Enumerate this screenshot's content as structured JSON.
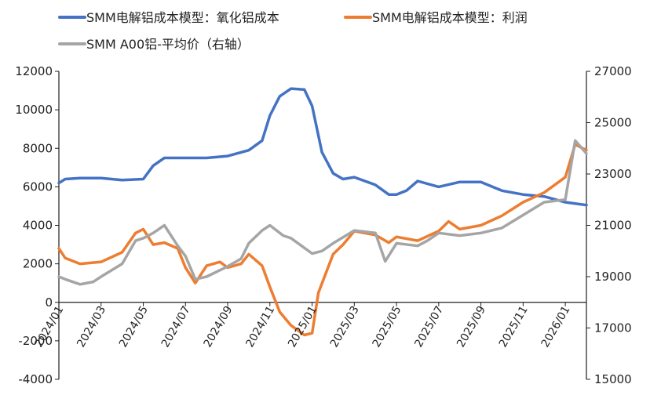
{
  "chart_data": {
    "type": "line",
    "title": "",
    "legend_position": "top",
    "grid": false,
    "x_ticks": [
      "2024/01",
      "2024/03",
      "2024/05",
      "2024/07",
      "2024/09",
      "2024/11",
      "2025/01",
      "2025/03",
      "2025/05",
      "2025/07",
      "2025/09",
      "2025/11",
      "2026/01"
    ],
    "xlim": [
      "2024/01",
      "2026/02"
    ],
    "y_left": {
      "ylim": [
        -4000,
        12000
      ],
      "ticks": [
        "-4000",
        "-2000",
        "0",
        "2000",
        "4000",
        "6000",
        "8000",
        "10000",
        "12000"
      ]
    },
    "y_right": {
      "ylim": [
        15000,
        27000
      ],
      "ticks": [
        "15000",
        "17000",
        "19000",
        "21000",
        "23000",
        "25000",
        "27000"
      ]
    },
    "series": [
      {
        "name": "SMM电解铝成本模型：氧化铝成本",
        "axis": "left",
        "color": "#4472C4",
        "points": [
          [
            "2024/01",
            6200
          ],
          [
            "2024/01/10",
            6400
          ],
          [
            "2024/02",
            6450
          ],
          [
            "2024/03",
            6450
          ],
          [
            "2024/04",
            6350
          ],
          [
            "2024/05",
            6400
          ],
          [
            "2024/05/15",
            7100
          ],
          [
            "2024/06",
            7500
          ],
          [
            "2024/07",
            7500
          ],
          [
            "2024/08",
            7500
          ],
          [
            "2024/09",
            7600
          ],
          [
            "2024/10",
            7900
          ],
          [
            "2024/10/20",
            8400
          ],
          [
            "2024/11",
            9700
          ],
          [
            "2024/11/15",
            10700
          ],
          [
            "2024/12",
            11100
          ],
          [
            "2024/12/20",
            11050
          ],
          [
            "2025/01",
            10200
          ],
          [
            "2025/01/15",
            7800
          ],
          [
            "2025/02",
            6700
          ],
          [
            "2025/02/15",
            6400
          ],
          [
            "2025/03",
            6500
          ],
          [
            "2025/04",
            6100
          ],
          [
            "2025/04/20",
            5600
          ],
          [
            "2025/05",
            5600
          ],
          [
            "2025/05/15",
            5800
          ],
          [
            "2025/06",
            6300
          ],
          [
            "2025/07",
            6000
          ],
          [
            "2025/08",
            6250
          ],
          [
            "2025/09",
            6250
          ],
          [
            "2025/10",
            5800
          ],
          [
            "2025/11",
            5600
          ],
          [
            "2025/12",
            5500
          ],
          [
            "2026/01",
            5200
          ],
          [
            "2026/02",
            5050
          ]
        ]
      },
      {
        "name": "SMM电解铝成本模型：利润",
        "axis": "left",
        "color": "#ED7D31",
        "points": [
          [
            "2024/01",
            2800
          ],
          [
            "2024/01/10",
            2300
          ],
          [
            "2024/02",
            2000
          ],
          [
            "2024/03",
            2100
          ],
          [
            "2024/04",
            2600
          ],
          [
            "2024/04/20",
            3600
          ],
          [
            "2024/05",
            3800
          ],
          [
            "2024/05/15",
            3000
          ],
          [
            "2024/06",
            3100
          ],
          [
            "2024/06/20",
            2800
          ],
          [
            "2024/07",
            1800
          ],
          [
            "2024/07/15",
            1000
          ],
          [
            "2024/08",
            1900
          ],
          [
            "2024/08/20",
            2100
          ],
          [
            "2024/09",
            1800
          ],
          [
            "2024/09/20",
            2000
          ],
          [
            "2024/10",
            2500
          ],
          [
            "2024/10/20",
            1900
          ],
          [
            "2024/11",
            800
          ],
          [
            "2024/11/15",
            -500
          ],
          [
            "2024/12",
            -1200
          ],
          [
            "2024/12/20",
            -1700
          ],
          [
            "2025/01",
            -1600
          ],
          [
            "2025/01/10",
            500
          ],
          [
            "2025/02",
            2500
          ],
          [
            "2025/02/15",
            3000
          ],
          [
            "2025/03",
            3700
          ],
          [
            "2025/04",
            3500
          ],
          [
            "2025/04/20",
            3100
          ],
          [
            "2025/05",
            3400
          ],
          [
            "2025/06",
            3200
          ],
          [
            "2025/07",
            3700
          ],
          [
            "2025/07/15",
            4200
          ],
          [
            "2025/08",
            3800
          ],
          [
            "2025/09",
            4000
          ],
          [
            "2025/10",
            4500
          ],
          [
            "2025/11",
            5200
          ],
          [
            "2025/12",
            5700
          ],
          [
            "2026/01",
            6500
          ],
          [
            "2026/01/15",
            8200
          ],
          [
            "2026/02",
            7900
          ]
        ]
      },
      {
        "name": "SMM A00铝-平均价（右轴）",
        "axis": "right",
        "color": "#A5A5A5",
        "points": [
          [
            "2024/01",
            19000
          ],
          [
            "2024/01/10",
            18900
          ],
          [
            "2024/02",
            18700
          ],
          [
            "2024/02/20",
            18800
          ],
          [
            "2024/03",
            19000
          ],
          [
            "2024/04",
            19500
          ],
          [
            "2024/04/20",
            20400
          ],
          [
            "2024/05",
            20500
          ],
          [
            "2024/05/15",
            20700
          ],
          [
            "2024/06",
            21000
          ],
          [
            "2024/06/20",
            20200
          ],
          [
            "2024/07",
            19800
          ],
          [
            "2024/07/15",
            18900
          ],
          [
            "2024/08",
            19000
          ],
          [
            "2024/09",
            19400
          ],
          [
            "2024/09/20",
            19700
          ],
          [
            "2024/10",
            20300
          ],
          [
            "2024/10/20",
            20800
          ],
          [
            "2024/11",
            21000
          ],
          [
            "2024/11/20",
            20600
          ],
          [
            "2024/12",
            20500
          ],
          [
            "2025/01",
            19900
          ],
          [
            "2025/01/15",
            20000
          ],
          [
            "2025/02",
            20300
          ],
          [
            "2025/03",
            20800
          ],
          [
            "2025/04",
            20700
          ],
          [
            "2025/04/15",
            19600
          ],
          [
            "2025/05",
            20300
          ],
          [
            "2025/06",
            20200
          ],
          [
            "2025/06/15",
            20400
          ],
          [
            "2025/07",
            20700
          ],
          [
            "2025/08",
            20600
          ],
          [
            "2025/09",
            20700
          ],
          [
            "2025/10",
            20900
          ],
          [
            "2025/11",
            21400
          ],
          [
            "2025/12",
            21900
          ],
          [
            "2026/01",
            22000
          ],
          [
            "2026/01/15",
            24300
          ],
          [
            "2026/02",
            23800
          ]
        ]
      }
    ]
  }
}
